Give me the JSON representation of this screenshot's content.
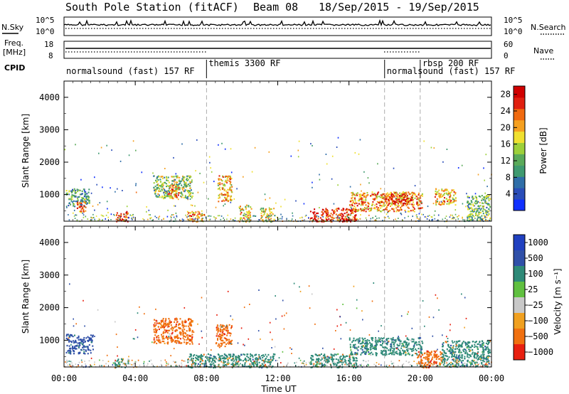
{
  "title": "South Pole Station (fitACF)",
  "beam": "Beam 08",
  "date_range": "18/Sep/2015 - 19/Sep/2015",
  "left_labels": {
    "nsky": "N.Sky",
    "freq": "Freq.",
    "freq_unit": "[MHz]",
    "cpid": "CPID"
  },
  "right_labels": {
    "nsearch": "N.Search",
    "nave": "Nave"
  },
  "noise_ticks_left": [
    "10^5",
    "10^0"
  ],
  "noise_ticks_right": [
    "10^5",
    "10^0"
  ],
  "freq_ticks": [
    "18",
    "8"
  ],
  "nave_ticks": [
    "60",
    "0"
  ],
  "cpid_segments": [
    {
      "label": "normalsound (fast) 157 RF",
      "start_hr": 0
    },
    {
      "label": "themis 3300 RF",
      "start_hr": 8
    },
    {
      "label": "normalsound (fast) 157 RF",
      "start_hr": 18
    },
    {
      "label": "rbsp 200 RF",
      "start_hr": 20
    }
  ],
  "x_axis": {
    "label": "Time UT",
    "ticks": [
      "00:00",
      "04:00",
      "08:00",
      "12:00",
      "16:00",
      "20:00",
      "00:00"
    ]
  },
  "y_axis": {
    "label": "Slant Range [km]",
    "ticks": [
      "1000",
      "2000",
      "3000",
      "4000"
    ]
  },
  "power_colorbar": {
    "label": "Power [dB]",
    "ticks": [
      "4",
      "8",
      "12",
      "16",
      "20",
      "24",
      "28"
    ]
  },
  "velocity_colorbar": {
    "label": "Velocity [m s⁻¹]",
    "ticks": [
      "1000",
      "500",
      "100",
      "25",
      "−25",
      "−100",
      "−500",
      "−1000"
    ]
  },
  "chart_data": [
    {
      "type": "heatmap",
      "name": "power",
      "x_unit": "hours UT",
      "xlim": [
        0,
        24
      ],
      "ylim": [
        180,
        4500
      ],
      "colorbar_range": [
        0,
        30
      ],
      "colors": [
        "#1030ff",
        "#2a4db8",
        "#2f6ea8",
        "#3f9a70",
        "#5aaa5a",
        "#9dd03a",
        "#f0e030",
        "#f5a020",
        "#f06a10",
        "#e02010",
        "#d00000"
      ],
      "echo_regions": [
        {
          "t": [
            0.1,
            1.4
          ],
          "r": [
            650,
            1200
          ],
          "db": 10
        },
        {
          "t": [
            0.7,
            1.2
          ],
          "r": [
            450,
            800
          ],
          "db": 24
        },
        {
          "t": [
            2.9,
            3.6
          ],
          "r": [
            180,
            500
          ],
          "db": 27
        },
        {
          "t": [
            5.0,
            7.2
          ],
          "r": [
            900,
            1600
          ],
          "db": 14
        },
        {
          "t": [
            5.8,
            6.4
          ],
          "r": [
            900,
            1300
          ],
          "db": 22
        },
        {
          "t": [
            6.9,
            7.9
          ],
          "r": [
            180,
            500
          ],
          "db": 22
        },
        {
          "t": [
            8.6,
            9.4
          ],
          "r": [
            800,
            1600
          ],
          "db": 20
        },
        {
          "t": [
            9.8,
            10.5
          ],
          "r": [
            180,
            700
          ],
          "db": 18
        },
        {
          "t": [
            11.0,
            11.8
          ],
          "r": [
            180,
            600
          ],
          "db": 16
        },
        {
          "t": [
            13.8,
            16.4
          ],
          "r": [
            180,
            600
          ],
          "db": 27
        },
        {
          "t": [
            16.0,
            20.1
          ],
          "r": [
            500,
            1100
          ],
          "db": 21
        },
        {
          "t": [
            18.0,
            19.5
          ],
          "r": [
            700,
            1050
          ],
          "db": 26
        },
        {
          "t": [
            20.8,
            22.0
          ],
          "r": [
            700,
            1200
          ],
          "db": 20
        },
        {
          "t": [
            22.6,
            23.9
          ],
          "r": [
            200,
            1000
          ],
          "db": 12
        }
      ]
    },
    {
      "type": "heatmap",
      "name": "velocity",
      "x_unit": "hours UT",
      "xlim": [
        0,
        24
      ],
      "ylim": [
        180,
        4500
      ],
      "colorbar_levels": [
        1000,
        500,
        100,
        25,
        -25,
        -100,
        -500,
        -1000
      ],
      "colors": [
        "#2040c0",
        "#3050a8",
        "#2e8a78",
        "#60c040",
        "#c8c8c8",
        "#f0a020",
        "#f07010",
        "#e82010"
      ],
      "echo_regions": [
        {
          "t": [
            0.1,
            1.6
          ],
          "r": [
            600,
            1200
          ],
          "v": 600
        },
        {
          "t": [
            2.8,
            3.6
          ],
          "r": [
            180,
            450
          ],
          "v": 150
        },
        {
          "t": [
            5.0,
            7.2
          ],
          "r": [
            900,
            1700
          ],
          "v": -450
        },
        {
          "t": [
            8.5,
            9.4
          ],
          "r": [
            800,
            1500
          ],
          "v": -400
        },
        {
          "t": [
            6.9,
            11.8
          ],
          "r": [
            180,
            600
          ],
          "v": 150
        },
        {
          "t": [
            13.8,
            16.4
          ],
          "r": [
            180,
            600
          ],
          "v": 120
        },
        {
          "t": [
            16.0,
            20.1
          ],
          "r": [
            550,
            1100
          ],
          "v": 400
        },
        {
          "t": [
            19.8,
            21.2
          ],
          "r": [
            180,
            700
          ],
          "v": -450
        },
        {
          "t": [
            21.2,
            23.9
          ],
          "r": [
            200,
            1000
          ],
          "v": 250
        }
      ]
    }
  ]
}
